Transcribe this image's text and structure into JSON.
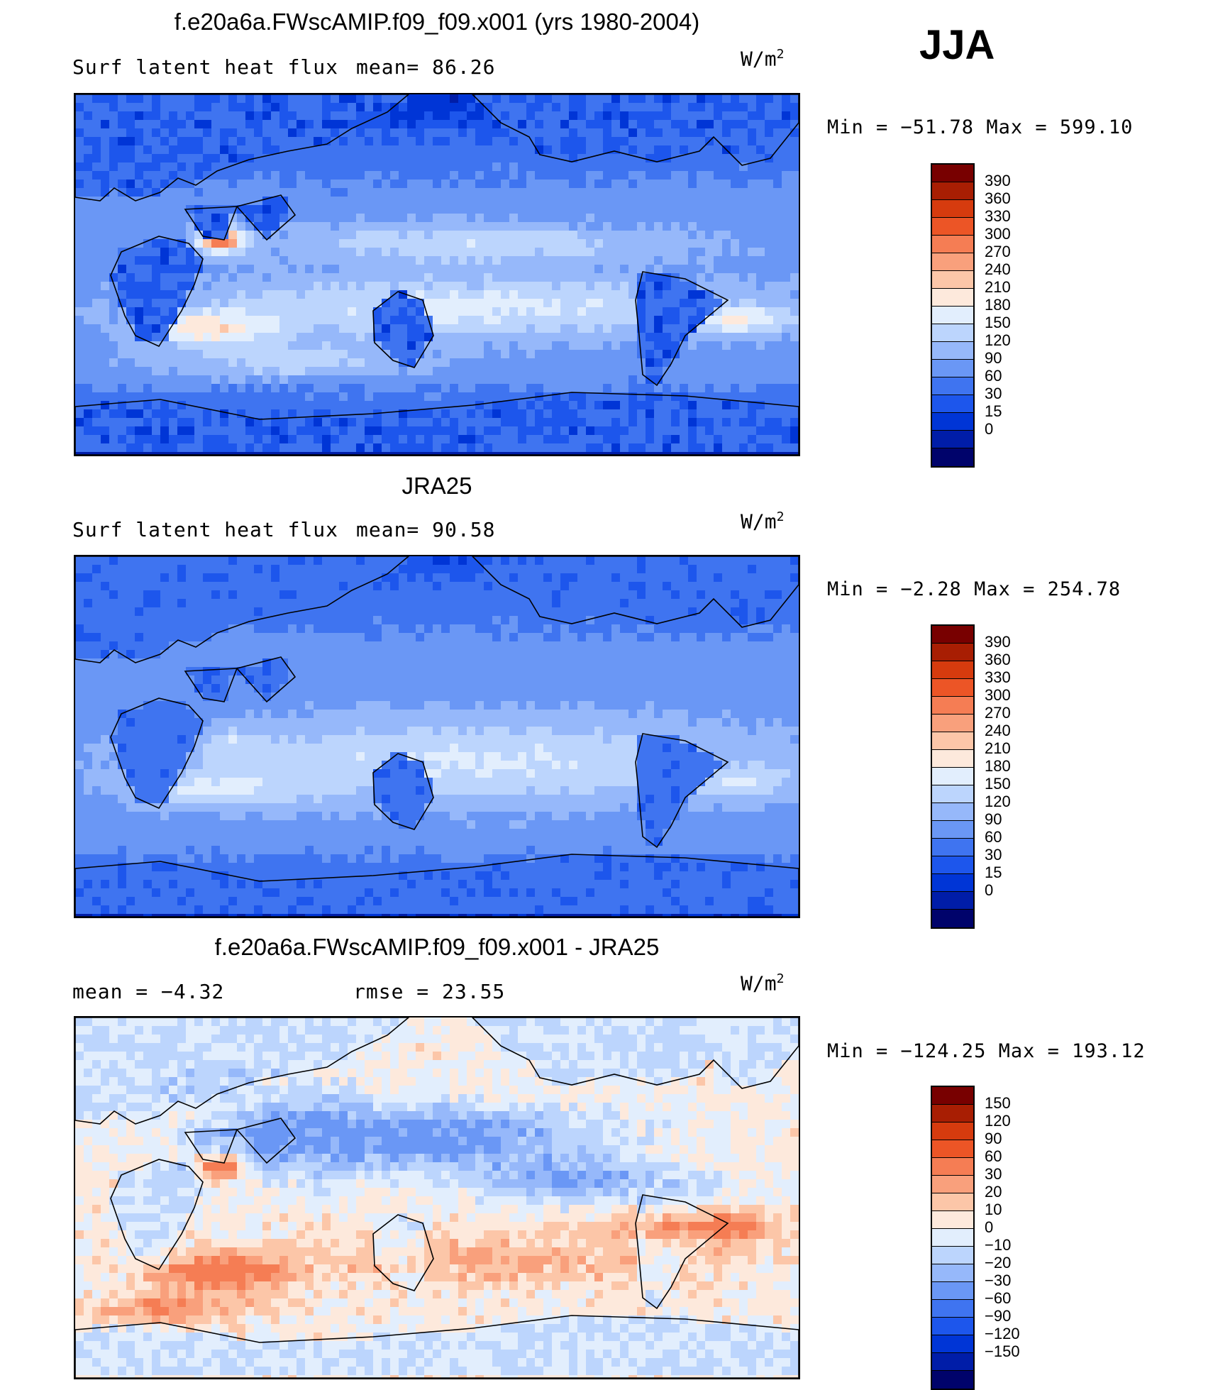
{
  "season": "JJA",
  "panels": [
    {
      "id": "model",
      "title": "f.e20a6a.FWscAMIP.f09_f09.x001 (yrs 1980-2004)",
      "left_label": "Surf latent heat flux",
      "mid_label": "mean=  86.26",
      "units": "W/m",
      "units_exp": "2",
      "minmax": "Min = −51.78 Max = 599.10"
    },
    {
      "id": "obs",
      "title": "JRA25",
      "left_label": "Surf latent heat flux",
      "mid_label": "mean=  90.58",
      "units": "W/m",
      "units_exp": "2",
      "minmax": "Min =  −2.28 Max = 254.78"
    },
    {
      "id": "diff",
      "title": "f.e20a6a.FWscAMIP.f09_f09.x001 - JRA25",
      "left_label": "mean =  −4.32",
      "mid_label": "rmse =  23.55",
      "units": "W/m",
      "units_exp": "2",
      "minmax": "Min = −124.25 Max = 193.12"
    }
  ],
  "chart_data": [
    {
      "type": "heatmap",
      "title": "f.e20a6a.FWscAMIP.f09_f09.x001 (yrs 1980-2004)",
      "variable": "Surf latent heat flux",
      "units": "W/m2",
      "mean": 86.26,
      "min": -51.78,
      "max": 599.1,
      "colorbar_levels": [
        0,
        15,
        30,
        60,
        90,
        120,
        150,
        180,
        210,
        240,
        270,
        300,
        330,
        360,
        390
      ],
      "colorbar_colors": [
        "#00036b",
        "#001da8",
        "#0035d6",
        "#1d56ec",
        "#3f74f0",
        "#6a97f5",
        "#96b8fa",
        "#bcd5fd",
        "#e2eefd",
        "#fde9dc",
        "#fcc6a8",
        "#f9a07c",
        "#f57d54",
        "#ec5526",
        "#d63b0e",
        "#a81e03",
        "#780000"
      ]
    },
    {
      "type": "heatmap",
      "title": "JRA25",
      "variable": "Surf latent heat flux",
      "units": "W/m2",
      "mean": 90.58,
      "min": -2.28,
      "max": 254.78,
      "colorbar_levels": [
        0,
        15,
        30,
        60,
        90,
        120,
        150,
        180,
        210,
        240,
        270,
        300,
        330,
        360,
        390
      ],
      "colorbar_colors": [
        "#00036b",
        "#001da8",
        "#0035d6",
        "#1d56ec",
        "#3f74f0",
        "#6a97f5",
        "#96b8fa",
        "#bcd5fd",
        "#e2eefd",
        "#fde9dc",
        "#fcc6a8",
        "#f9a07c",
        "#f57d54",
        "#ec5526",
        "#d63b0e",
        "#a81e03",
        "#780000"
      ]
    },
    {
      "type": "heatmap",
      "title": "f.e20a6a.FWscAMIP.f09_f09.x001 - JRA25",
      "units": "W/m2",
      "mean": -4.32,
      "rmse": 23.55,
      "min": -124.25,
      "max": 193.12,
      "colorbar_levels": [
        -150,
        -120,
        -90,
        -60,
        -30,
        -20,
        -10,
        0,
        10,
        20,
        30,
        60,
        90,
        120,
        150
      ],
      "colorbar_colors": [
        "#00036b",
        "#001da8",
        "#0035d6",
        "#1d56ec",
        "#3f74f0",
        "#6a97f5",
        "#96b8fa",
        "#bcd5fd",
        "#e2eefd",
        "#fde9dc",
        "#fcc6a8",
        "#f9a07c",
        "#f57d54",
        "#ec5526",
        "#d63b0e",
        "#a81e03",
        "#780000"
      ]
    }
  ]
}
